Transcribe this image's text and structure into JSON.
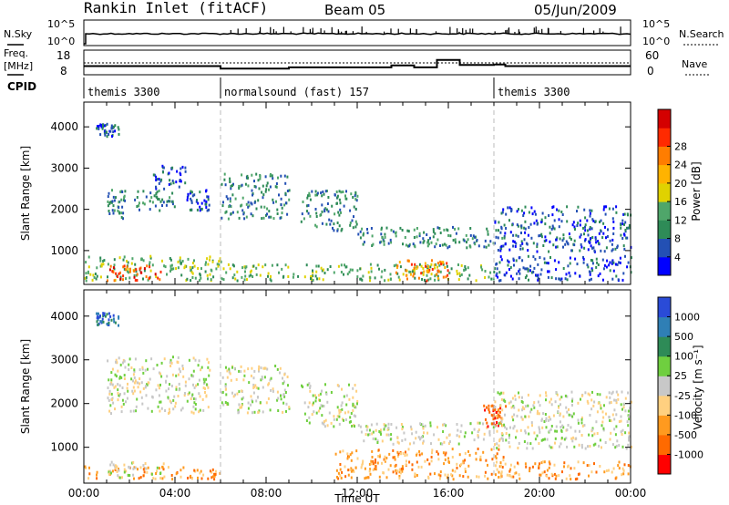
{
  "header": {
    "station": "Rankin Inlet (fitACF)",
    "beam": "Beam 05",
    "date": "05/Jun/2009"
  },
  "noise_panel": {
    "left_label": "N.Sky",
    "left_ticks": [
      "10^5",
      "10^0"
    ],
    "right_label": "N.Search",
    "right_ticks": [
      "10^5",
      "10^0"
    ]
  },
  "freq_panel": {
    "left_label_1": "Freq.",
    "left_label_2": "[MHz]",
    "left_ticks": [
      "18",
      "8"
    ],
    "right_label": "Nave",
    "right_ticks": [
      "60",
      "0"
    ]
  },
  "cpid_panel": {
    "label": "CPID",
    "segments": [
      {
        "start": 0,
        "end": 6,
        "text": "themis 3300"
      },
      {
        "start": 6,
        "end": 18,
        "text": "normalsound (fast) 157"
      },
      {
        "start": 18,
        "end": 24,
        "text": "themis 3300"
      }
    ]
  },
  "chart_data": [
    {
      "type": "heatmap",
      "name": "power",
      "ylabel": "Slant Range [km]",
      "xlabel": "",
      "x_range_hours": [
        0,
        24
      ],
      "ylim": [
        180,
        4600
      ],
      "yticks": [
        {
          "value": 1000,
          "label": "1000"
        },
        {
          "value": 2000,
          "label": "2000"
        },
        {
          "value": 3000,
          "label": "3000"
        },
        {
          "value": 4000,
          "label": "4000"
        }
      ],
      "colorbar": {
        "label": "Power [dB]",
        "tick_labels": [
          "4",
          "8",
          "12",
          "16",
          "20",
          "24",
          "28"
        ],
        "colors": [
          "#0000ff",
          "#2350b4",
          "#2e8b57",
          "#4fa66a",
          "#e0d200",
          "#ffb300",
          "#ff7d00",
          "#ff2a00",
          "#d40000"
        ]
      },
      "echo_regions": [
        {
          "t0": 0.0,
          "t1": 6.0,
          "r0": 300,
          "r1": 900,
          "level": 3
        },
        {
          "t0": 1.0,
          "t1": 3.5,
          "r0": 300,
          "r1": 700,
          "level": 7
        },
        {
          "t0": 1.0,
          "t1": 1.8,
          "r0": 1800,
          "r1": 2500,
          "level": 2
        },
        {
          "t0": 2.2,
          "t1": 4.0,
          "r0": 2000,
          "r1": 2500,
          "level": 2
        },
        {
          "t0": 3.0,
          "t1": 4.5,
          "r0": 2500,
          "r1": 3100,
          "level": 1
        },
        {
          "t0": 4.5,
          "t1": 5.5,
          "r0": 2000,
          "r1": 2500,
          "level": 1
        },
        {
          "t0": 0.5,
          "t1": 1.5,
          "r0": 3800,
          "r1": 4100,
          "level": 1
        },
        {
          "t0": 6.0,
          "t1": 9.0,
          "r0": 1800,
          "r1": 2900,
          "level": 2
        },
        {
          "t0": 6.0,
          "t1": 18.0,
          "r0": 300,
          "r1": 700,
          "level": 3
        },
        {
          "t0": 13.5,
          "t1": 16.0,
          "r0": 300,
          "r1": 800,
          "level": 6
        },
        {
          "t0": 9.5,
          "t1": 12.0,
          "r0": 1500,
          "r1": 2500,
          "level": 2
        },
        {
          "t0": 12.0,
          "t1": 18.5,
          "r0": 1100,
          "r1": 1600,
          "level": 2
        },
        {
          "t0": 18.0,
          "t1": 24.0,
          "r0": 1000,
          "r1": 2100,
          "level": 1
        },
        {
          "t0": 18.0,
          "t1": 24.0,
          "r0": 300,
          "r1": 900,
          "level": 1
        }
      ]
    },
    {
      "type": "heatmap",
      "name": "velocity",
      "ylabel": "Slant Range [km]",
      "xlabel": "Time UT",
      "x_range_hours": [
        0,
        24
      ],
      "xticks": [
        {
          "value": 0,
          "label": "00:00"
        },
        {
          "value": 4,
          "label": "04:00"
        },
        {
          "value": 8,
          "label": "08:00"
        },
        {
          "value": 12,
          "label": "12:00"
        },
        {
          "value": 16,
          "label": "16:00"
        },
        {
          "value": 20,
          "label": "20:00"
        },
        {
          "value": 24,
          "label": "00:00"
        }
      ],
      "ylim": [
        180,
        4600
      ],
      "yticks": [
        {
          "value": 1000,
          "label": "1000"
        },
        {
          "value": 2000,
          "label": "2000"
        },
        {
          "value": 3000,
          "label": "3000"
        },
        {
          "value": 4000,
          "label": "4000"
        }
      ],
      "colorbar": {
        "label": "Velocity [m s⁻¹]",
        "tick_labels": [
          "1000",
          "500",
          "100",
          "25",
          "-25",
          "-100",
          "-500",
          "-1000"
        ],
        "colors": [
          "#2a4bd7",
          "#2f7fb5",
          "#2e8b57",
          "#6fcf3f",
          "#c8c8c8",
          "#ffd080",
          "#ff9a1f",
          "#ff6a00",
          "#ff0000"
        ]
      },
      "echo_regions": [
        {
          "t0": 0.0,
          "t1": 6.0,
          "r0": 300,
          "r1": 600,
          "level": 6
        },
        {
          "t0": 1.0,
          "t1": 3.5,
          "r0": 300,
          "r1": 700,
          "level": 4
        },
        {
          "t0": 1.0,
          "t1": 5.5,
          "r0": 1800,
          "r1": 3100,
          "level": 4
        },
        {
          "t0": 0.5,
          "t1": 1.5,
          "r0": 3800,
          "r1": 4100,
          "level": 1
        },
        {
          "t0": 6.0,
          "t1": 9.0,
          "r0": 1800,
          "r1": 2900,
          "level": 4
        },
        {
          "t0": 9.5,
          "t1": 12.0,
          "r0": 1500,
          "r1": 2500,
          "level": 4
        },
        {
          "t0": 11.0,
          "t1": 18.5,
          "r0": 300,
          "r1": 1000,
          "level": 6
        },
        {
          "t0": 12.0,
          "t1": 18.5,
          "r0": 1100,
          "r1": 1600,
          "level": 4
        },
        {
          "t0": 17.5,
          "t1": 18.5,
          "r0": 1500,
          "r1": 2000,
          "level": 7
        },
        {
          "t0": 18.0,
          "t1": 24.0,
          "r0": 1000,
          "r1": 2300,
          "level": 4
        },
        {
          "t0": 18.0,
          "t1": 24.0,
          "r0": 300,
          "r1": 700,
          "level": 6
        }
      ]
    }
  ]
}
